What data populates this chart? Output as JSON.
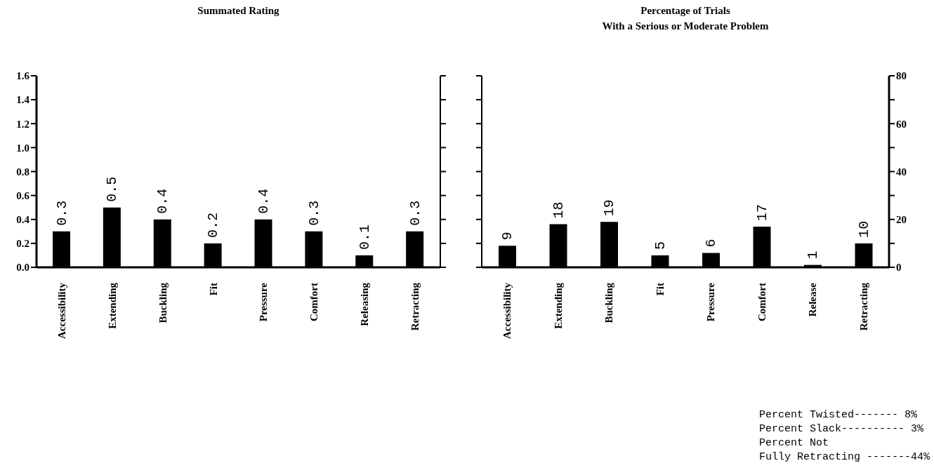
{
  "chart_data": [
    {
      "type": "bar",
      "title": "Summated Rating",
      "categories": [
        "Accessibility",
        "Extending",
        "Buckling",
        "Fit",
        "Pressure",
        "Comfort",
        "Releasing",
        "Retracting"
      ],
      "values": [
        0.3,
        0.5,
        0.4,
        0.2,
        0.4,
        0.3,
        0.1,
        0.3
      ],
      "color": "#000000",
      "data_labels": true,
      "ylim": [
        0,
        1.6
      ],
      "yticks": [
        {
          "value": 0,
          "label": "0.0"
        },
        {
          "value": 0.2,
          "label": "0.2"
        },
        {
          "value": 0.4,
          "label": "0.4"
        },
        {
          "value": 0.6,
          "label": "0.6"
        },
        {
          "value": 0.8,
          "label": "0.8"
        },
        {
          "value": 1,
          "label": "1.0"
        },
        {
          "value": 1.2,
          "label": "1.2"
        },
        {
          "value": 1.4,
          "label": "1.4"
        },
        {
          "value": 1.6,
          "label": "1.6"
        }
      ],
      "grid": false,
      "legend": false
    },
    {
      "type": "bar",
      "title": "Percentage of Trials\nWith a Serious or Moderate Problem",
      "categories": [
        "Accessibility",
        "Extending",
        "Buckling",
        "Fit",
        "Pressure",
        "Comfort",
        "Release",
        "Retracting"
      ],
      "series": [
        {
          "color": "#000000",
          "axis": "y2",
          "values": [
            9,
            18,
            19,
            5,
            6,
            17,
            1,
            10
          ]
        }
      ],
      "data_labels": true,
      "y2lim": [
        0,
        80
      ],
      "y2ticks": [
        0,
        {
          "value": 10,
          "label": null
        },
        20,
        {
          "value": 30,
          "label": null
        },
        40,
        {
          "value": 50,
          "label": null
        },
        60,
        {
          "value": 70,
          "label": null
        },
        80
      ],
      "grid": false,
      "legend": false,
      "annotations": [
        "Percent Twisted------- 8%",
        "Percent Slack---------- 3%",
        "Percent Not\nFully Retracting -------44%"
      ]
    }
  ]
}
